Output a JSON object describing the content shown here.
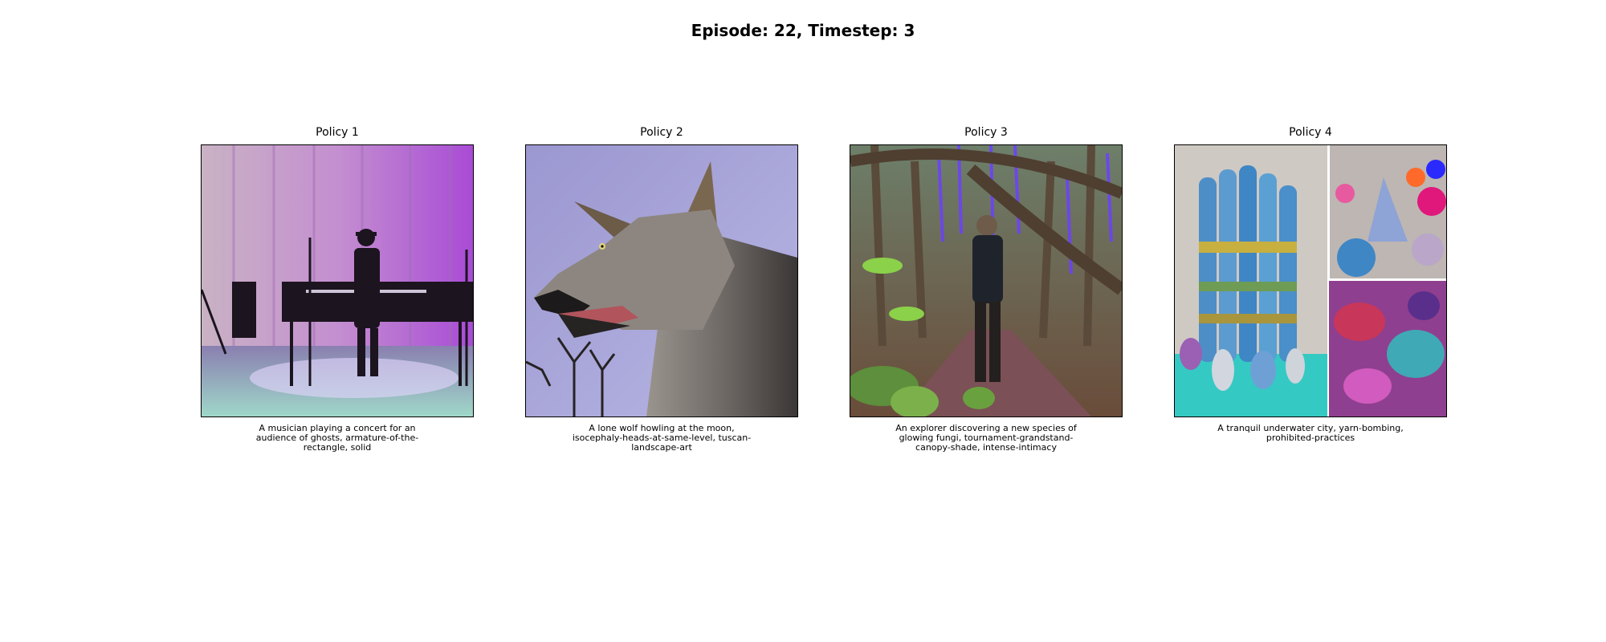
{
  "figure": {
    "title": "Episode: 22, Timestep: 3"
  },
  "panels": [
    {
      "title": "Policy 1",
      "caption": "A musician playing a concert for an audience of ghosts, armature-of-the-rectangle, solid"
    },
    {
      "title": "Policy 2",
      "caption": "A lone wolf howling at the moon, isocephaly-heads-at-same-level, tuscan-landscape-art"
    },
    {
      "title": "Policy 3",
      "caption": "An explorer discovering a new species of glowing fungi, tournament-grandstand-canopy-shade, intense-intimacy"
    },
    {
      "title": "Policy 4",
      "caption": "A tranquil underwater city, yarn-bombing, prohibited-practices"
    }
  ]
}
